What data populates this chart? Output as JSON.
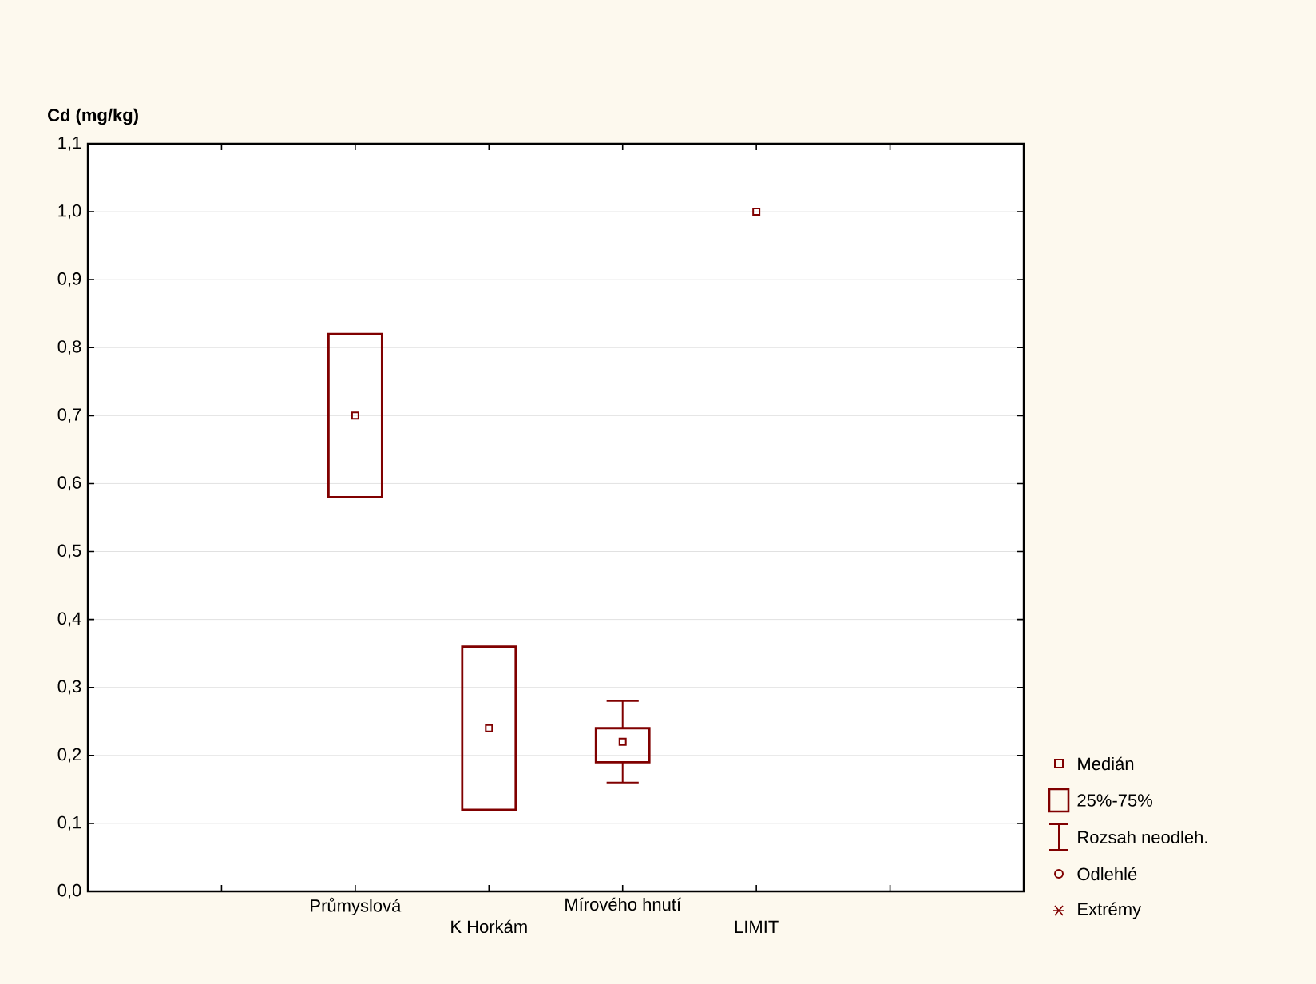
{
  "chart_data": {
    "type": "box",
    "ylabel": "Cd (mg/kg)",
    "categories": [
      null,
      "Průmyslová",
      "K Horkám",
      "Mírového hnutí",
      "LIMIT",
      null
    ],
    "boxes": [
      null,
      {
        "low": 0.58,
        "q1": 0.58,
        "median": 0.7,
        "q3": 0.82,
        "high": 0.82
      },
      {
        "low": 0.12,
        "q1": 0.12,
        "median": 0.24,
        "q3": 0.36,
        "high": 0.36
      },
      {
        "low": 0.16,
        "q1": 0.19,
        "median": 0.22,
        "q3": 0.24,
        "high": 0.28
      },
      null,
      null
    ],
    "series": [
      {
        "type": "scatter",
        "x": [
          "LIMIT"
        ],
        "values": [
          1.0
        ],
        "color": "#800000",
        "marker": "square"
      }
    ],
    "color": "#800000",
    "ylim": [
      0,
      1.1
    ],
    "yticks": [
      {
        "value": 0,
        "label": "0,0"
      },
      {
        "value": 0.1,
        "label": "0,1"
      },
      {
        "value": 0.2,
        "label": "0,2"
      },
      {
        "value": 0.3,
        "label": "0,3"
      },
      {
        "value": 0.4,
        "label": "0,4"
      },
      {
        "value": 0.5,
        "label": "0,5"
      },
      {
        "value": 0.6,
        "label": "0,6"
      },
      {
        "value": 0.7,
        "label": "0,7"
      },
      {
        "value": 0.8,
        "label": "0,8"
      },
      {
        "value": 0.9,
        "label": "0,9"
      },
      {
        "value": 1.0,
        "label": "1,0"
      },
      {
        "value": 1.1,
        "label": "1,1"
      }
    ],
    "grid": "y",
    "annotations": [
      "Medián",
      "25%-75%",
      "Rozsah neodleh.",
      "Odlehlé",
      "Extrémy"
    ]
  }
}
